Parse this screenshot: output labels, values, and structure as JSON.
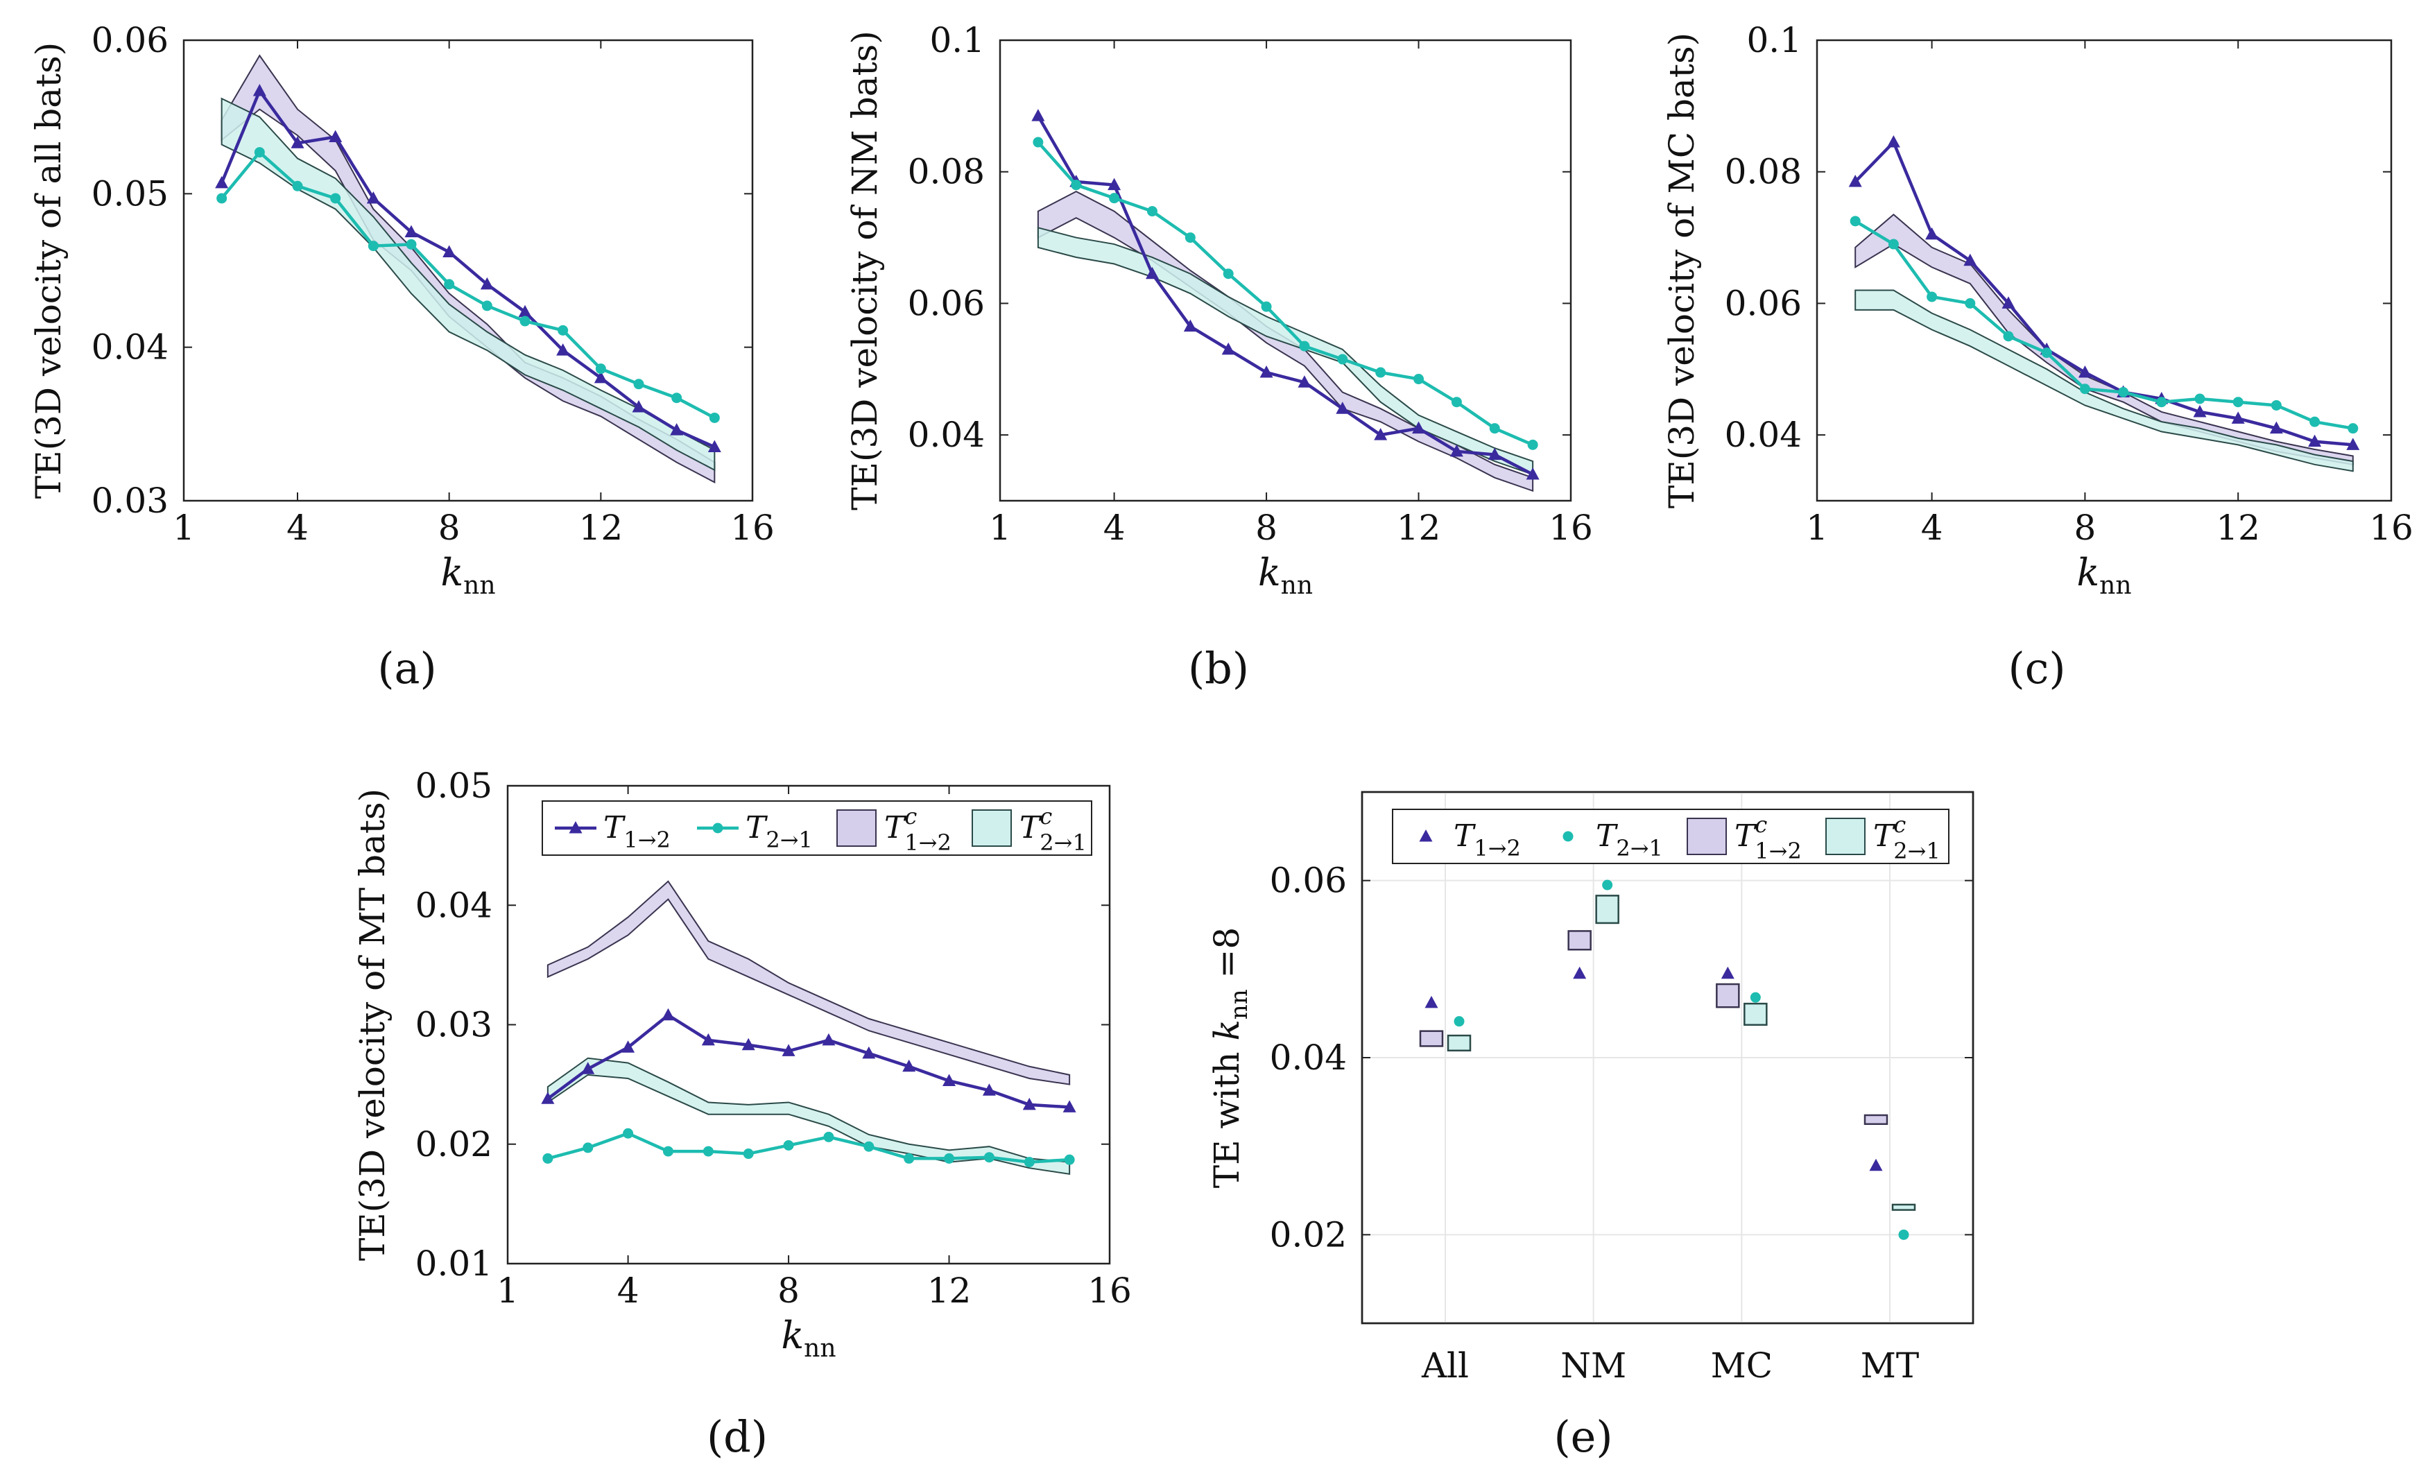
{
  "colors": {
    "t12": "#3a2a9e",
    "t21": "#1dbcb0",
    "band12_fill": "#d6cfec",
    "band21_fill": "#cff0ec",
    "band12_stroke": "#3a3450",
    "band21_stroke": "#2a4a48"
  },
  "legend": {
    "t12": "T1→2",
    "t21": "T2→1",
    "c12": "Tc1→2",
    "c21": "Tc2→1"
  },
  "chart_data": [
    {
      "type": "line",
      "panel_label": "(a)",
      "ylabel": "TE(3D velocity of all bats)",
      "xlabel": "knn",
      "xlim": [
        1,
        16
      ],
      "ylim": [
        0.03,
        0.06
      ],
      "xticks": [
        1,
        4,
        8,
        12,
        16
      ],
      "yticks": [
        0.03,
        0.04,
        0.05,
        0.06
      ],
      "xtick_labels": [
        "1",
        "4",
        "8",
        "12",
        "16"
      ],
      "ytick_labels": [
        "0.03",
        "0.04",
        "0.05",
        "0.06"
      ],
      "x": [
        2,
        3,
        4,
        5,
        6,
        7,
        8,
        9,
        10,
        11,
        12,
        13,
        14,
        15
      ],
      "series": [
        {
          "name": "T1→2",
          "values": [
            0.0507,
            0.0567,
            0.0533,
            0.0537,
            0.0497,
            0.0475,
            0.0462,
            0.0441,
            0.0423,
            0.0398,
            0.038,
            0.0361,
            0.0346,
            0.0335
          ]
        },
        {
          "name": "T2→1",
          "values": [
            0.0497,
            0.0527,
            0.0505,
            0.0497,
            0.0466,
            0.0467,
            0.0441,
            0.0427,
            0.0417,
            0.0411,
            0.0386,
            0.0376,
            0.0367,
            0.0354
          ]
        }
      ],
      "bands": [
        {
          "name": "Tc1→2",
          "lower": [
            0.0535,
            0.0555,
            0.0538,
            0.0515,
            0.047,
            0.045,
            0.042,
            0.04,
            0.038,
            0.0365,
            0.0355,
            0.034,
            0.0325,
            0.0312
          ],
          "upper": [
            0.0548,
            0.059,
            0.0555,
            0.0535,
            0.049,
            0.0465,
            0.0435,
            0.0415,
            0.039,
            0.038,
            0.0368,
            0.0353,
            0.034,
            0.0325
          ]
        },
        {
          "name": "Tc2→1",
          "lower": [
            0.0532,
            0.052,
            0.0503,
            0.049,
            0.0465,
            0.0435,
            0.041,
            0.0398,
            0.0382,
            0.0372,
            0.036,
            0.0348,
            0.0333,
            0.032
          ],
          "upper": [
            0.0562,
            0.055,
            0.0523,
            0.051,
            0.0485,
            0.0455,
            0.0428,
            0.041,
            0.0395,
            0.0385,
            0.0372,
            0.036,
            0.0346,
            0.0333
          ]
        }
      ]
    },
    {
      "type": "line",
      "panel_label": "(b)",
      "ylabel": "TE(3D velocity of NM bats)",
      "xlabel": "knn",
      "xlim": [
        1,
        16
      ],
      "ylim": [
        0.03,
        0.1
      ],
      "xticks": [
        1,
        4,
        8,
        12,
        16
      ],
      "yticks": [
        0.04,
        0.06,
        0.08,
        0.1
      ],
      "xtick_labels": [
        "1",
        "4",
        "8",
        "12",
        "16"
      ],
      "ytick_labels": [
        "0.04",
        "0.06",
        "0.08",
        "0.1"
      ],
      "x": [
        2,
        3,
        4,
        5,
        6,
        7,
        8,
        9,
        10,
        11,
        12,
        13,
        14,
        15
      ],
      "series": [
        {
          "name": "T1→2",
          "values": [
            0.0885,
            0.0785,
            0.078,
            0.0645,
            0.0565,
            0.053,
            0.0495,
            0.048,
            0.044,
            0.04,
            0.041,
            0.0375,
            0.037,
            0.034
          ]
        },
        {
          "name": "T2→1",
          "values": [
            0.0845,
            0.078,
            0.076,
            0.074,
            0.07,
            0.0645,
            0.0595,
            0.0535,
            0.0515,
            0.0495,
            0.0485,
            0.045,
            0.041,
            0.0385
          ]
        }
      ],
      "bands": [
        {
          "name": "Tc1→2",
          "lower": [
            0.07,
            0.073,
            0.07,
            0.0665,
            0.0625,
            0.0585,
            0.054,
            0.0505,
            0.044,
            0.042,
            0.039,
            0.0365,
            0.0335,
            0.0315
          ],
          "upper": [
            0.074,
            0.077,
            0.074,
            0.0695,
            0.065,
            0.061,
            0.0565,
            0.053,
            0.0465,
            0.044,
            0.041,
            0.0385,
            0.0355,
            0.0335
          ]
        },
        {
          "name": "Tc2→1",
          "lower": [
            0.0685,
            0.067,
            0.066,
            0.064,
            0.0615,
            0.058,
            0.055,
            0.053,
            0.051,
            0.045,
            0.041,
            0.0385,
            0.036,
            0.034
          ],
          "upper": [
            0.0715,
            0.07,
            0.069,
            0.067,
            0.0645,
            0.061,
            0.058,
            0.0555,
            0.053,
            0.0475,
            0.043,
            0.0405,
            0.038,
            0.036
          ]
        }
      ]
    },
    {
      "type": "line",
      "panel_label": "(c)",
      "ylabel": "TE(3D velocity of MC bats)",
      "xlabel": "knn",
      "xlim": [
        1,
        16
      ],
      "ylim": [
        0.03,
        0.1
      ],
      "xticks": [
        1,
        4,
        8,
        12,
        16
      ],
      "yticks": [
        0.04,
        0.06,
        0.08,
        0.1
      ],
      "xtick_labels": [
        "1",
        "4",
        "8",
        "12",
        "16"
      ],
      "ytick_labels": [
        "0.04",
        "0.06",
        "0.08",
        "0.1"
      ],
      "x": [
        2,
        3,
        4,
        5,
        6,
        7,
        8,
        9,
        10,
        11,
        12,
        13,
        14,
        15
      ],
      "series": [
        {
          "name": "T1→2",
          "values": [
            0.0785,
            0.0845,
            0.0705,
            0.0665,
            0.06,
            0.053,
            0.0495,
            0.0465,
            0.0455,
            0.0435,
            0.0425,
            0.041,
            0.039,
            0.0385
          ]
        },
        {
          "name": "T2→1",
          "values": [
            0.0725,
            0.069,
            0.061,
            0.06,
            0.055,
            0.0525,
            0.047,
            0.0465,
            0.045,
            0.0455,
            0.045,
            0.0445,
            0.042,
            0.041
          ]
        }
      ],
      "bands": [
        {
          "name": "Tc1→2",
          "lower": [
            0.0655,
            0.069,
            0.0655,
            0.063,
            0.0555,
            0.051,
            0.047,
            0.045,
            0.042,
            0.0405,
            0.039,
            0.0375,
            0.0365,
            0.0355
          ],
          "upper": [
            0.0685,
            0.0735,
            0.0685,
            0.066,
            0.059,
            0.053,
            0.049,
            0.0465,
            0.0435,
            0.042,
            0.0405,
            0.039,
            0.0378,
            0.0368
          ]
        },
        {
          "name": "Tc2→1",
          "lower": [
            0.059,
            0.059,
            0.056,
            0.0535,
            0.0505,
            0.0475,
            0.0445,
            0.0425,
            0.0405,
            0.0395,
            0.0385,
            0.037,
            0.0355,
            0.0345
          ],
          "upper": [
            0.062,
            0.062,
            0.0585,
            0.056,
            0.053,
            0.05,
            0.0465,
            0.044,
            0.042,
            0.041,
            0.0395,
            0.0385,
            0.037,
            0.036
          ]
        }
      ]
    },
    {
      "type": "line",
      "panel_label": "(d)",
      "ylabel": "TE(3D velocity of MT bats)",
      "xlabel": "knn",
      "xlim": [
        1,
        16
      ],
      "ylim": [
        0.01,
        0.05
      ],
      "xticks": [
        1,
        4,
        8,
        12,
        16
      ],
      "yticks": [
        0.01,
        0.02,
        0.03,
        0.04,
        0.05
      ],
      "xtick_labels": [
        "1",
        "4",
        "8",
        "12",
        "16"
      ],
      "ytick_labels": [
        "0.01",
        "0.02",
        "0.03",
        "0.04",
        "0.05"
      ],
      "legend_position": "top",
      "x": [
        2,
        3,
        4,
        5,
        6,
        7,
        8,
        9,
        10,
        11,
        12,
        13,
        14,
        15
      ],
      "series": [
        {
          "name": "T1→2",
          "values": [
            0.0238,
            0.0263,
            0.0281,
            0.0308,
            0.0287,
            0.0283,
            0.0278,
            0.0287,
            0.0276,
            0.0265,
            0.0253,
            0.0245,
            0.0233,
            0.0231
          ]
        },
        {
          "name": "T2→1",
          "values": [
            0.0188,
            0.0197,
            0.0209,
            0.0194,
            0.0194,
            0.0192,
            0.0199,
            0.0206,
            0.0198,
            0.0188,
            0.0188,
            0.0189,
            0.0185,
            0.0187
          ]
        }
      ],
      "bands": [
        {
          "name": "Tc1→2",
          "lower": [
            0.034,
            0.0355,
            0.0375,
            0.0405,
            0.0355,
            0.034,
            0.0325,
            0.031,
            0.0295,
            0.0285,
            0.0275,
            0.0265,
            0.0255,
            0.025
          ],
          "upper": [
            0.035,
            0.0365,
            0.039,
            0.042,
            0.037,
            0.0355,
            0.0335,
            0.032,
            0.0305,
            0.0295,
            0.0285,
            0.0275,
            0.0265,
            0.0258
          ]
        },
        {
          "name": "Tc2→1",
          "lower": [
            0.0235,
            0.0258,
            0.0255,
            0.024,
            0.0225,
            0.0225,
            0.0225,
            0.0215,
            0.0198,
            0.0192,
            0.0185,
            0.0188,
            0.018,
            0.0175
          ],
          "upper": [
            0.0248,
            0.0272,
            0.0268,
            0.0252,
            0.0235,
            0.0233,
            0.0235,
            0.0225,
            0.0208,
            0.02,
            0.0195,
            0.0198,
            0.0188,
            0.0185
          ]
        }
      ]
    },
    {
      "type": "scatter",
      "panel_label": "(e)",
      "ylabel": "TE with knn =8",
      "xlabel": "",
      "ylim": [
        0.01,
        0.07
      ],
      "yticks": [
        0.02,
        0.04,
        0.06
      ],
      "ytick_labels": [
        "0.02",
        "0.04",
        "0.06"
      ],
      "categories": [
        "All",
        "NM",
        "MC",
        "MT"
      ],
      "legend_position": "top",
      "series": [
        {
          "name": "T1→2",
          "values": [
            0.0462,
            0.0495,
            0.0495,
            0.0278
          ]
        },
        {
          "name": "T2→1",
          "values": [
            0.0441,
            0.0595,
            0.0468,
            0.02
          ]
        }
      ],
      "boxes": [
        {
          "name": "Tc1→2",
          "lower": [
            0.0413,
            0.0522,
            0.0457,
            0.0325
          ],
          "upper": [
            0.043,
            0.0543,
            0.0483,
            0.0335
          ]
        },
        {
          "name": "Tc2→1",
          "lower": [
            0.0408,
            0.0552,
            0.0437,
            0.0228
          ],
          "upper": [
            0.0425,
            0.0583,
            0.0461,
            0.0234
          ]
        }
      ]
    }
  ]
}
